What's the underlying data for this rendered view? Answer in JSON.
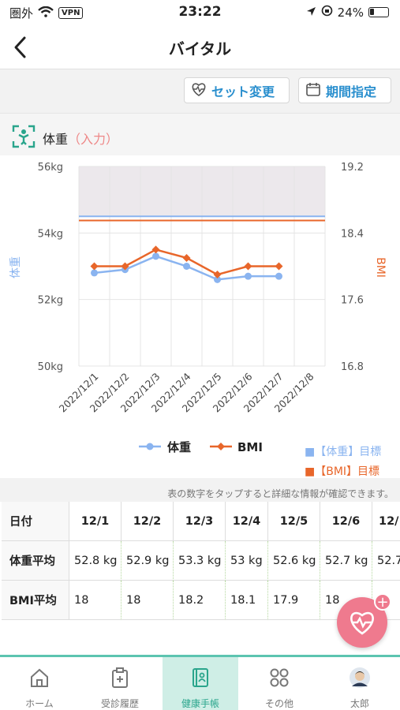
{
  "status_bar": {
    "carrier": "圏外",
    "vpn": "VPN",
    "time": "23:22",
    "battery": "24%"
  },
  "nav": {
    "title": "バイタル"
  },
  "toolbar": {
    "set_change_label": "セット変更",
    "period_label": "期間指定"
  },
  "section": {
    "title": "体重",
    "subtitle": "（入力）"
  },
  "legend": {
    "weight_target": "■【体重】目標",
    "bmi_target": "■【BMI】目標"
  },
  "note": "表の数字をタップすると詳細な情報が確認できます。",
  "table": {
    "header_label": "日付",
    "dates": [
      "12/1",
      "12/2",
      "12/3",
      "12/4",
      "12/5",
      "12/6",
      "12/"
    ],
    "rows": [
      {
        "label": "体重平均",
        "values": [
          "52.8 kg",
          "52.9 kg",
          "53.3 kg",
          "53 kg",
          "52.6 kg",
          "52.7 kg",
          "52.7"
        ]
      },
      {
        "label": "BMI平均",
        "values": [
          "18",
          "18",
          "18.2",
          "18.1",
          "17.9",
          "18",
          ""
        ]
      }
    ]
  },
  "tabs": [
    {
      "label": "ホーム",
      "icon": "home-icon"
    },
    {
      "label": "受診履歴",
      "icon": "clipboard-icon"
    },
    {
      "label": "健康手帳",
      "icon": "notebook-icon",
      "active": true
    },
    {
      "label": "その他",
      "icon": "grid-icon"
    },
    {
      "label": "太郎",
      "icon": "avatar"
    }
  ],
  "colors": {
    "weight": "#8ab4f0",
    "bmi": "#e8662a",
    "accent": "#2a8fce",
    "teal": "#2aa58c",
    "pink": "#ef7a8e"
  },
  "chart_data": {
    "type": "line",
    "categories": [
      "2022/12/1",
      "2022/12/2",
      "2022/12/3",
      "2022/12/4",
      "2022/12/5",
      "2022/12/6",
      "2022/12/7",
      "2022/12/8"
    ],
    "series": [
      {
        "name": "体重",
        "axis": "left",
        "values": [
          52.8,
          52.9,
          53.3,
          53.0,
          52.6,
          52.7,
          52.7,
          null
        ]
      },
      {
        "name": "BMI",
        "axis": "right",
        "values": [
          18.0,
          18.0,
          18.2,
          18.1,
          17.9,
          18.0,
          18.0,
          null
        ]
      }
    ],
    "ylabel": "体重",
    "y2label": "BMI",
    "ylim": [
      50,
      56
    ],
    "y2lim": [
      16.8,
      19.2
    ],
    "yticks": [
      "50kg",
      "52kg",
      "54kg",
      "56kg"
    ],
    "y2ticks": [
      "16.8",
      "17.6",
      "18.4",
      "19.2"
    ],
    "target_lines": [
      {
        "axis": "left",
        "value": 54.5
      },
      {
        "axis": "right",
        "value": 18.55
      }
    ],
    "shaded_above": 54.5,
    "grid": true,
    "legend": "bottom"
  }
}
